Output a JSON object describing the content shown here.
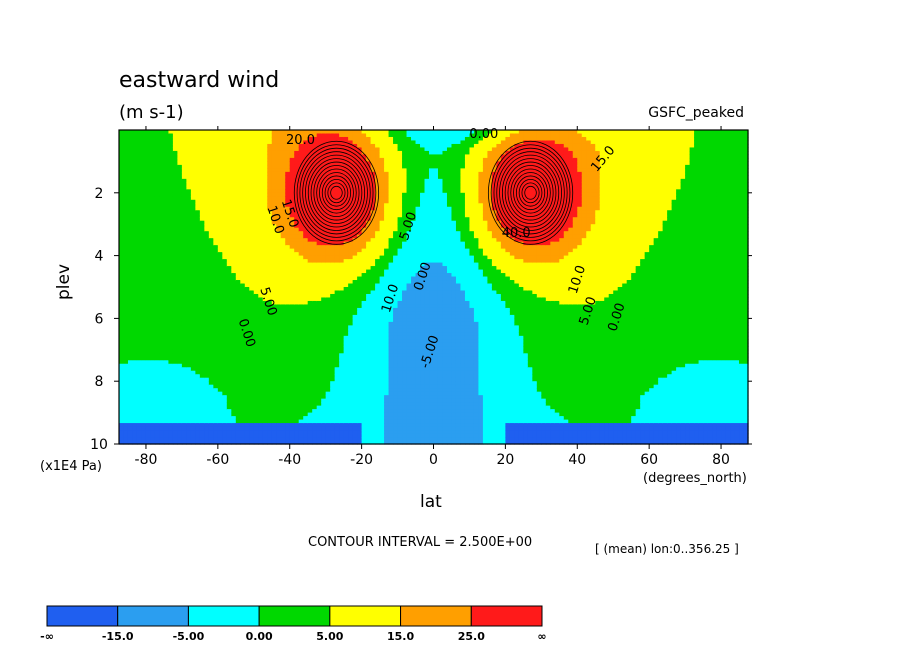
{
  "header": {
    "title": "eastward wind",
    "units": "(m s-1)",
    "dataset": "GSFC_peaked"
  },
  "footer": {
    "contour_interval": "CONTOUR INTERVAL = 2.500E+00",
    "averaging": "[ (mean) lon:0..356.25 ]"
  },
  "chart_data": {
    "type": "heatmap",
    "title": "eastward wind",
    "subtitle": "(m s-1)",
    "xlabel": "lat",
    "x_unit": "(degrees_north)",
    "ylabel": "plev",
    "y_unit": "(x1E4 Pa)",
    "xlim": [
      -87.5,
      87.5
    ],
    "ylim": [
      10,
      0
    ],
    "y_inverted": true,
    "xticks": [
      -80,
      -60,
      -40,
      -20,
      0,
      20,
      40,
      60,
      80
    ],
    "xtick_labels": [
      "-80",
      "-60",
      "-40",
      "-20",
      "0",
      "20",
      "40",
      "60",
      "80"
    ],
    "yticks": [
      2,
      4,
      6,
      8,
      10
    ],
    "ytick_labels": [
      "2",
      "4",
      "6",
      "8",
      "10"
    ],
    "contour_interval": 2.5,
    "jets": [
      {
        "lat": -27,
        "plev": 2.0,
        "max_u": 48
      },
      {
        "lat": 27,
        "plev": 2.0,
        "max_u": 48
      }
    ],
    "contour_labels": [
      {
        "text": "0.00",
        "lat": -53,
        "plev": 6.5,
        "rot": 72
      },
      {
        "text": "5.00",
        "lat": -47,
        "plev": 5.5,
        "rot": 72
      },
      {
        "text": "10.0",
        "lat": -45,
        "plev": 2.9,
        "rot": 72
      },
      {
        "text": "15.0",
        "lat": -41,
        "plev": 2.7,
        "rot": 72
      },
      {
        "text": "10.0",
        "lat": -11,
        "plev": 5.4,
        "rot": -72
      },
      {
        "text": "5.00",
        "lat": -6,
        "plev": 3.1,
        "rot": -72
      },
      {
        "text": "0.00",
        "lat": -2,
        "plev": 4.7,
        "rot": -72
      },
      {
        "text": "-5.00",
        "lat": 0,
        "plev": 7.1,
        "rot": -72
      },
      {
        "text": "0.00",
        "lat": 14,
        "plev": 0.25,
        "rot": 0
      },
      {
        "text": "20.0",
        "lat": -37,
        "plev": 0.45,
        "rot": 0
      },
      {
        "text": "40.0",
        "lat": 23,
        "plev": 3.4,
        "rot": 0
      },
      {
        "text": "10.0",
        "lat": 41,
        "plev": 4.8,
        "rot": -72
      },
      {
        "text": "5.00",
        "lat": 44,
        "plev": 5.8,
        "rot": -72
      },
      {
        "text": "0.00",
        "lat": 52,
        "plev": 6.0,
        "rot": -72
      },
      {
        "text": "15.0",
        "lat": 48,
        "plev": 1.0,
        "rot": -50
      }
    ],
    "colorbar": {
      "levels": [
        "-∞",
        "-15.0",
        "-5.00",
        "0.00",
        "5.00",
        "15.0",
        "25.0",
        "∞"
      ],
      "colors": [
        "#1f5ff0",
        "#2b9ef0",
        "#00ffff",
        "#00d800",
        "#ffff00",
        "#ff9f00",
        "#ff1a1a"
      ]
    },
    "colors": {
      "very_neg": "#1f5ff0",
      "neg": "#2b9ef0",
      "slight_neg": "#00ffff",
      "low_pos": "#00d800",
      "mid_pos": "#ffff00",
      "high_pos": "#ff9f00",
      "jet_core": "#ff1a1a"
    },
    "grid": false,
    "legend": "bottom-left colorbar"
  }
}
